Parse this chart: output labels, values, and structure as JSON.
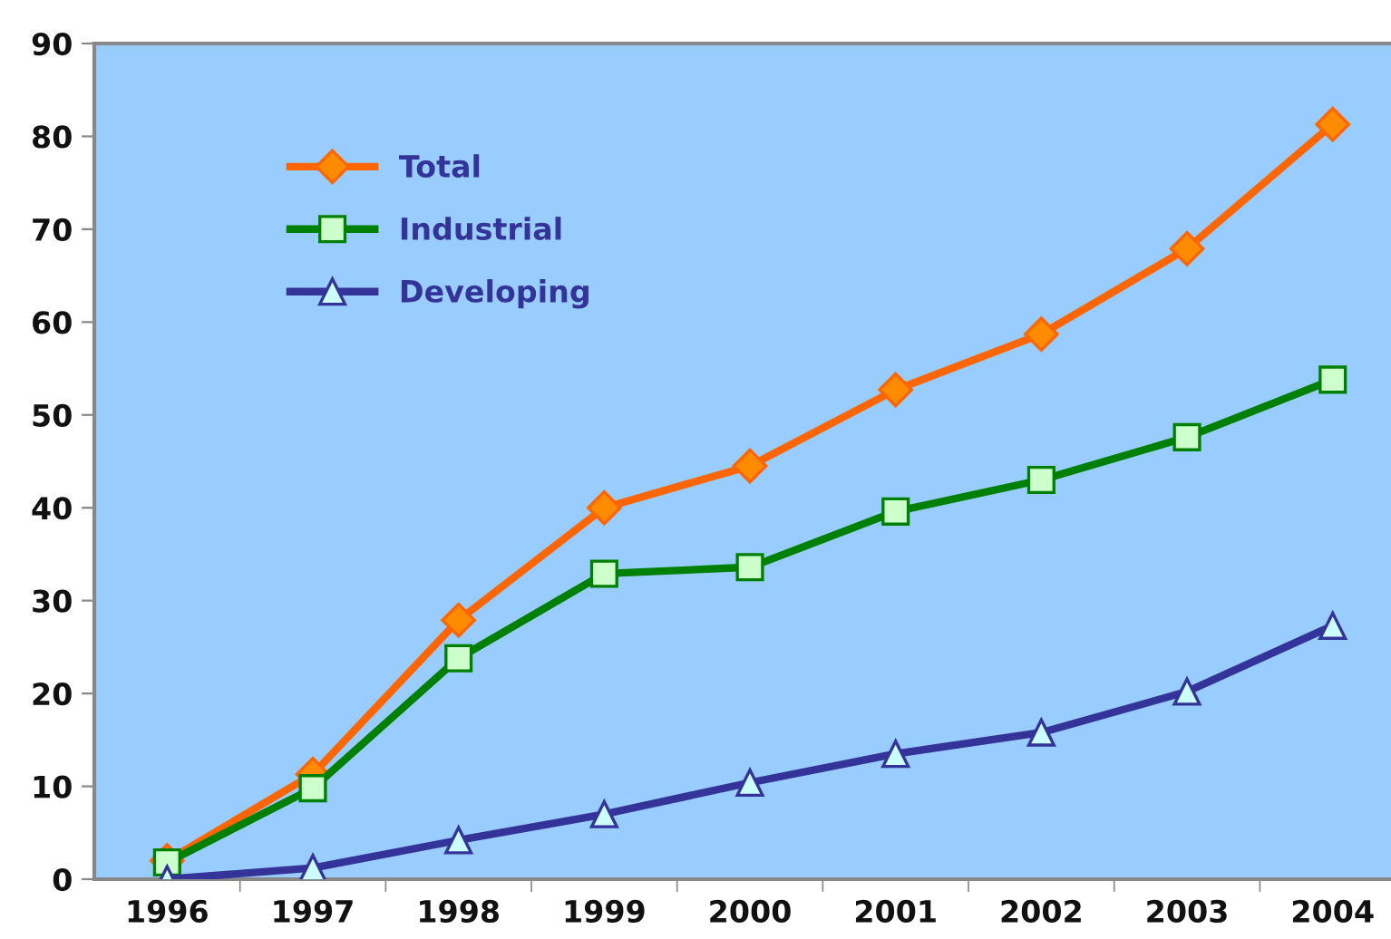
{
  "chart_data": {
    "type": "line",
    "categories": [
      "1996",
      "1997",
      "1998",
      "1999",
      "2000",
      "2001",
      "2002",
      "2003",
      "2004"
    ],
    "series": [
      {
        "name": "Total",
        "color": "#ff6600",
        "marker": "diamond",
        "values": [
          2,
          11.3,
          27.9,
          40,
          44.5,
          52.7,
          58.7,
          67.9,
          81.3
        ]
      },
      {
        "name": "Industrial",
        "color": "#008000",
        "marker": "square",
        "values": [
          1.8,
          9.8,
          23.8,
          32.9,
          33.6,
          39.6,
          43,
          47.6,
          53.8
        ]
      },
      {
        "name": "Developing",
        "color": "#333399",
        "marker": "triangle",
        "values": [
          0,
          1.2,
          4.2,
          7,
          10.4,
          13.5,
          15.8,
          20.2,
          27.3
        ]
      }
    ],
    "ylim": [
      0,
      90
    ],
    "yticks": [
      0,
      10,
      20,
      30,
      40,
      50,
      60,
      70,
      80,
      90
    ],
    "grid": false,
    "legend": "top left",
    "line_style": "solid"
  }
}
